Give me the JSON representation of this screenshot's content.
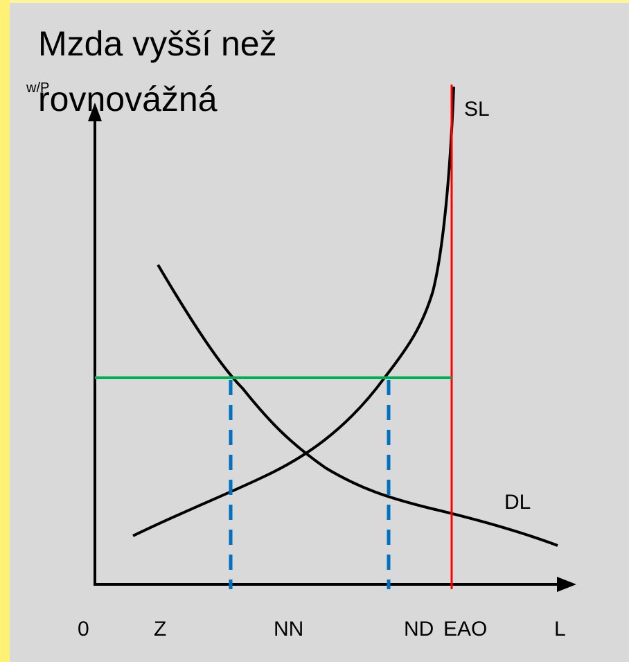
{
  "title": {
    "lines": [
      "Mzda vyšší než",
      "rovnovážná"
    ]
  },
  "axes": {
    "y_label": "w/P",
    "x_label": "L",
    "origin": "0"
  },
  "curves": {
    "supply": "SL",
    "demand": "DL"
  },
  "x_labels": [
    "Z",
    "NN",
    "ND",
    "EAO"
  ]
}
